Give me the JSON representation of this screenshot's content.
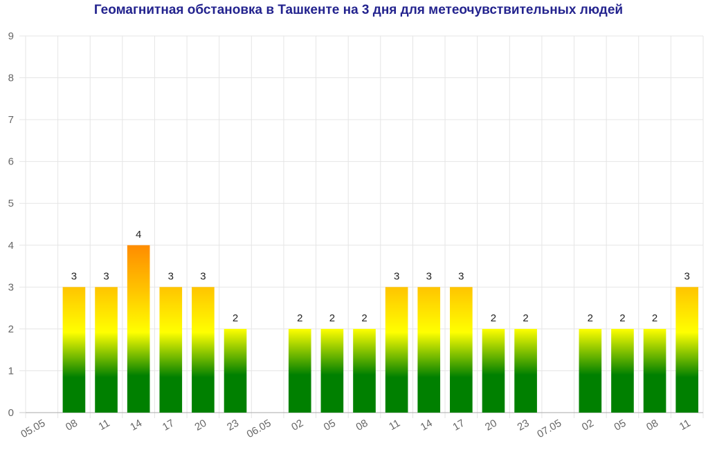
{
  "chart_data": {
    "type": "bar",
    "title": "Геомагнитная обстановка в Ташкенте на 3 дня для метеочувствительных людей",
    "ylim": [
      0,
      9
    ],
    "yticks": [
      0,
      1,
      2,
      3,
      4,
      5,
      6,
      7,
      8,
      9
    ],
    "grid": true,
    "categories": [
      "05.05",
      "08",
      "11",
      "14",
      "17",
      "20",
      "23",
      "06.05",
      "02",
      "05",
      "08",
      "11",
      "14",
      "17",
      "20",
      "23",
      "07.05",
      "02",
      "05",
      "08",
      "11"
    ],
    "values": [
      null,
      3,
      3,
      4,
      3,
      3,
      2,
      null,
      2,
      2,
      2,
      3,
      3,
      3,
      2,
      2,
      null,
      2,
      2,
      2,
      3
    ],
    "colors": {
      "title": "#23238e",
      "low": "#008000",
      "mid": "#ffff00",
      "high": "#ff8c00",
      "grid": "#e5e5e5"
    }
  }
}
